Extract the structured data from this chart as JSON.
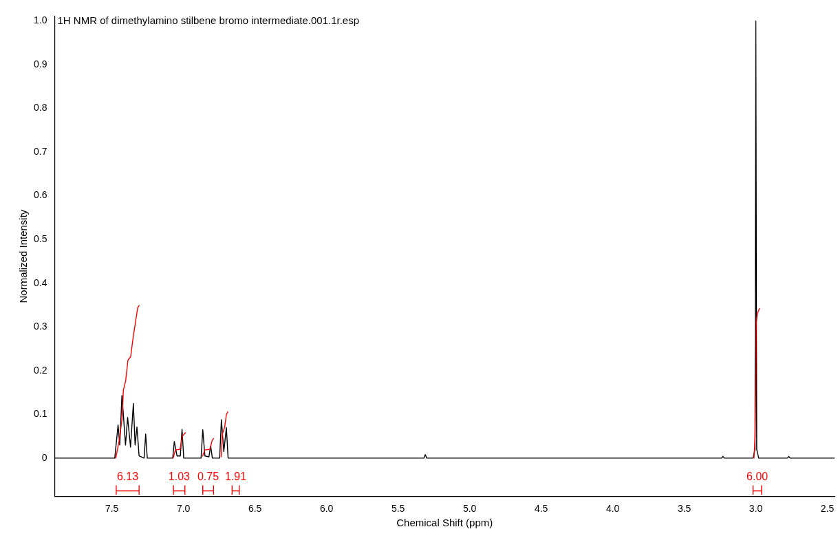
{
  "chart_data": {
    "type": "line",
    "title": "1H NMR of dimethylamino stilbene bromo intermediate.001.1r.esp",
    "xlabel": "Chemical Shift (ppm)",
    "ylabel": "Normalized Intensity",
    "xlim": [
      7.9,
      2.45
    ],
    "ylim": [
      -0.087,
      1.01
    ],
    "xticks": [
      {
        "value": 7.5,
        "label": "7.5"
      },
      {
        "value": 7,
        "label": "7.0"
      },
      {
        "value": 6.5,
        "label": "6.5"
      },
      {
        "value": 6,
        "label": "6.0"
      },
      {
        "value": 5.5,
        "label": "5.5"
      },
      {
        "value": 5,
        "label": "5.0"
      },
      {
        "value": 4.5,
        "label": "4.5"
      },
      {
        "value": 4,
        "label": "4.0"
      },
      {
        "value": 3.5,
        "label": "3.5"
      },
      {
        "value": 3,
        "label": "3.0"
      },
      {
        "value": 2.5,
        "label": "2.5"
      }
    ],
    "yticks": [
      0,
      0.1,
      0.2,
      0.3,
      0.4,
      0.5,
      0.6,
      0.7,
      0.8,
      0.9,
      {
        "value": 1,
        "label": "1.0"
      }
    ],
    "grid": false,
    "legend": false,
    "marker": "none",
    "line_style": "solid",
    "series": [
      {
        "color": "#000000",
        "x": [
          7.9,
          7.48,
          7.457,
          7.445,
          7.43,
          7.42,
          7.405,
          7.39,
          7.37,
          7.35,
          7.338,
          7.325,
          7.31,
          7.275,
          7.264,
          7.253,
          7.075,
          7.064,
          7.045,
          7.022,
          7.01,
          6.998,
          6.877,
          6.865,
          6.85,
          6.822,
          6.81,
          6.798,
          6.747,
          6.735,
          6.718,
          6.7,
          6.688,
          5.32,
          5.31,
          5.3,
          3.24,
          3.23,
          3.22,
          3.02,
          3.006,
          3.0,
          2.994,
          2.98,
          2.78,
          2.77,
          2.76,
          2.45
        ],
        "values": [
          0,
          0,
          0.076,
          0.03,
          0.143,
          0.1,
          0.03,
          0.093,
          0.025,
          0.125,
          0.03,
          0.071,
          0.005,
          0,
          0.055,
          0,
          0,
          0.038,
          0.005,
          0.005,
          0.066,
          0,
          0,
          0.065,
          0.005,
          0.003,
          0.028,
          0,
          0,
          0.088,
          0.015,
          0.07,
          0,
          0,
          0.008,
          0,
          0,
          0.004,
          0,
          0,
          0.02,
          1.0,
          0.02,
          0,
          0,
          0.004,
          0,
          0
        ]
      },
      {
        "color": "#ff0000",
        "x": [
          7.473,
          7.449,
          7.429,
          7.42,
          7.404,
          7.388,
          7.369,
          7.35,
          7.337,
          7.32,
          7.31
        ],
        "values": [
          0,
          0.04,
          0.09,
          0.155,
          0.177,
          0.224,
          0.232,
          0.28,
          0.307,
          0.344,
          0.349
        ]
      },
      {
        "color": "#ff0000",
        "x": [
          7.072,
          7.056,
          7.024,
          7.008,
          6.987
        ],
        "values": [
          0,
          0.019,
          0.02,
          0.05,
          0.058
        ]
      },
      {
        "color": "#ff0000",
        "x": [
          6.866,
          6.85,
          6.815,
          6.8,
          6.79
        ],
        "values": [
          0.005,
          0.019,
          0.02,
          0.04,
          0.045
        ]
      },
      {
        "color": "#ff0000",
        "x": [
          6.736,
          6.728,
          6.712,
          6.7,
          6.69
        ],
        "values": [
          0.003,
          0.055,
          0.071,
          0.1,
          0.106
        ]
      },
      {
        "color": "#ff0000",
        "x": [
          3.013,
          3.005,
          3.0,
          2.997,
          2.99,
          2.975
        ],
        "values": [
          0,
          0.05,
          0.2,
          0.31,
          0.33,
          0.342
        ]
      },
      {
        "color": "#ff0000",
        "x": [
          7.47,
          7.47,
          7.47,
          7.31,
          7.31,
          7.31
        ],
        "values": [
          -0.063,
          -0.083,
          -0.075,
          -0.075,
          -0.063,
          -0.083
        ]
      },
      {
        "color": "#ff0000",
        "x": [
          7.07,
          7.07,
          7.07,
          6.99,
          6.99,
          6.99
        ],
        "values": [
          -0.063,
          -0.083,
          -0.075,
          -0.075,
          -0.063,
          -0.083
        ]
      },
      {
        "color": "#ff0000",
        "x": [
          6.865,
          6.865,
          6.865,
          6.79,
          6.79,
          6.79
        ],
        "values": [
          -0.063,
          -0.083,
          -0.075,
          -0.075,
          -0.063,
          -0.083
        ]
      },
      {
        "color": "#ff0000",
        "x": [
          6.66,
          6.66,
          6.66,
          6.61,
          6.61,
          6.61
        ],
        "values": [
          -0.063,
          -0.083,
          -0.075,
          -0.075,
          -0.063,
          -0.083
        ]
      },
      {
        "color": "#ff0000",
        "x": [
          3.02,
          3.02,
          3.02,
          2.96,
          2.96,
          2.96
        ],
        "values": [
          -0.063,
          -0.083,
          -0.075,
          -0.075,
          -0.063,
          -0.083
        ]
      }
    ],
    "annotations": [
      "6.13",
      "1.03",
      "0.75",
      "1.91",
      "6.00"
    ]
  }
}
